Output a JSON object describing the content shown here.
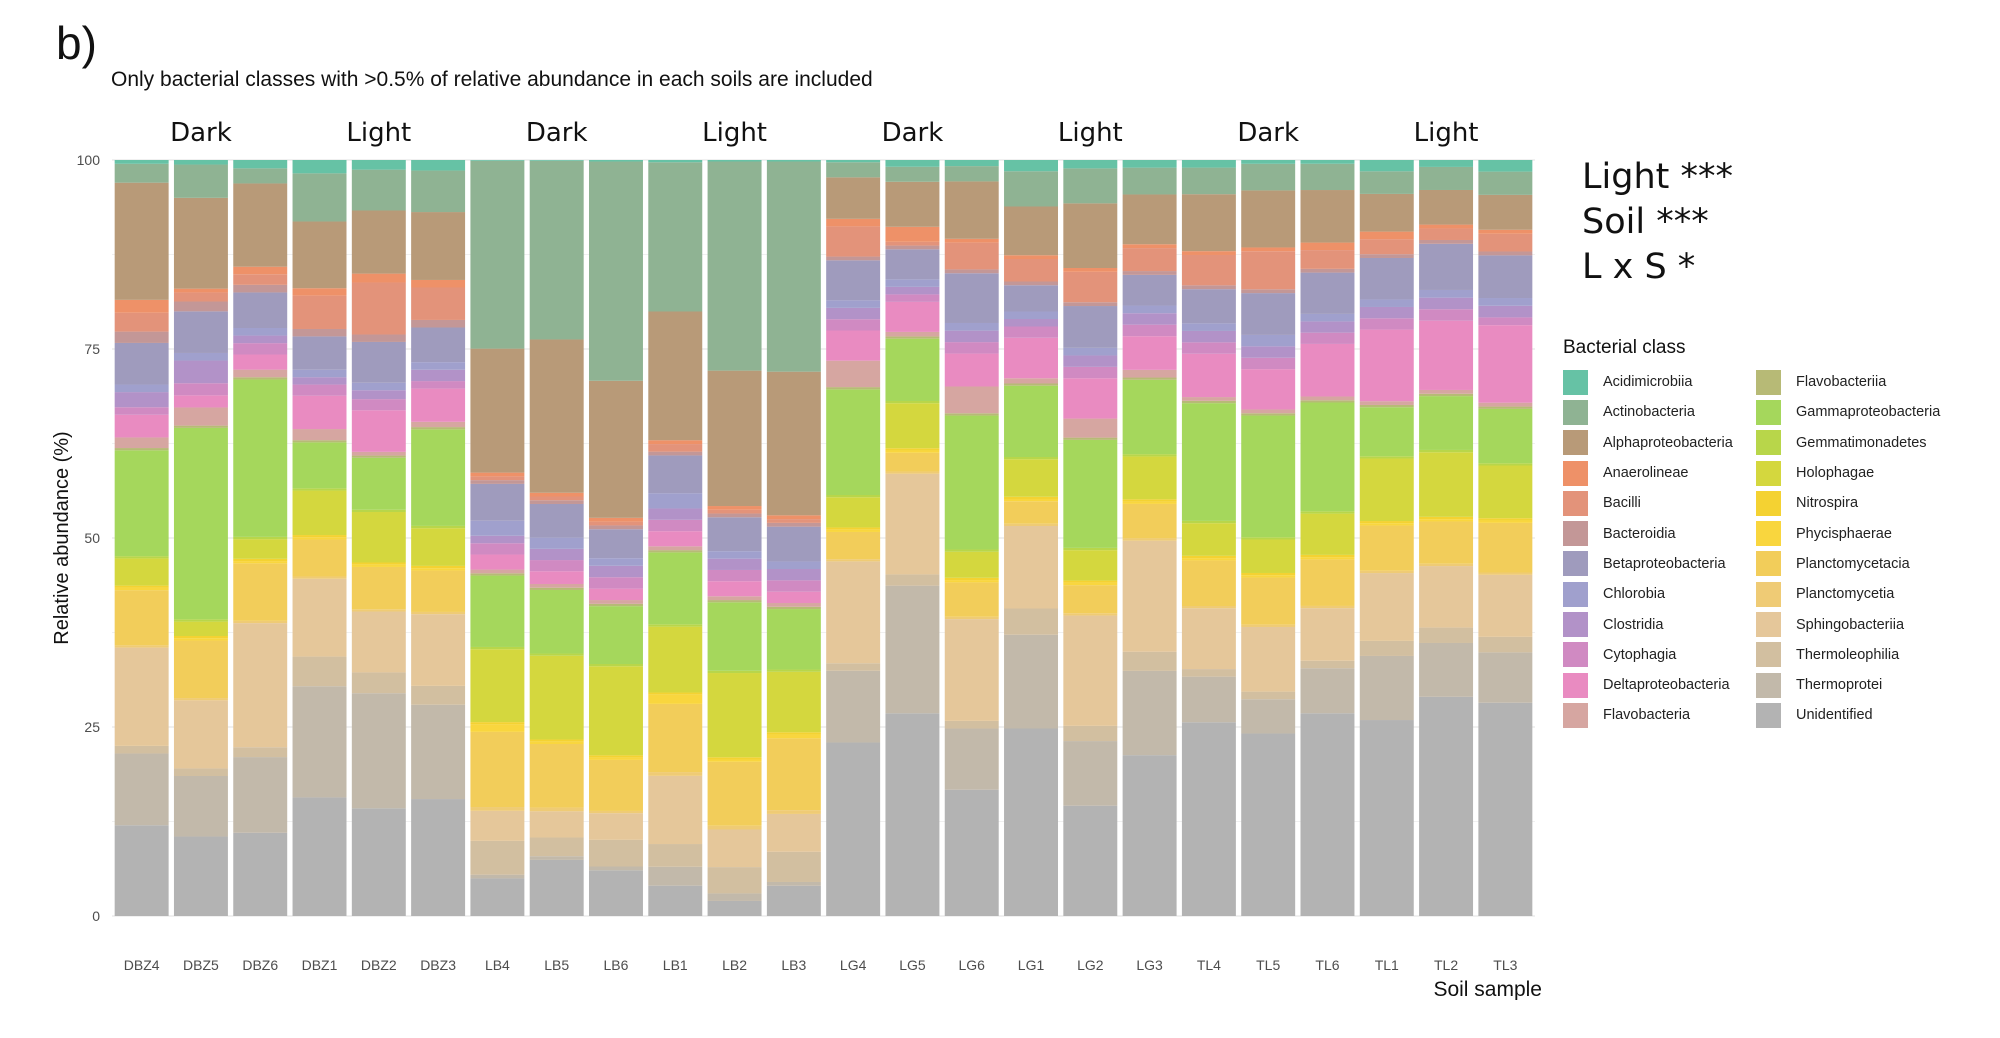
{
  "panel_label": "b)",
  "subtitle": "Only bacterial classes with >0.5% of relative abundance in each soils are included",
  "stats": [
    "Light ***",
    "Soil ***",
    "L x S *"
  ],
  "chart_data": {
    "type": "bar",
    "stacked": true,
    "xlabel": "Soil sample",
    "ylabel": "Relative abundance (%)",
    "ylim": [
      0,
      100
    ],
    "yticks": [
      0,
      25,
      50,
      75,
      100
    ],
    "grid": true,
    "legend_title": "Bacterial class",
    "legend_position": "right",
    "group_labels": [
      "Dark",
      "Light",
      "Dark",
      "Light",
      "Dark",
      "Light",
      "Dark",
      "Light"
    ],
    "categories": [
      "DBZ4",
      "DBZ5",
      "DBZ6",
      "DBZ1",
      "DBZ2",
      "DBZ3",
      "LB4",
      "LB5",
      "LB6",
      "LB1",
      "LB2",
      "LB3",
      "LG4",
      "LG5",
      "LG6",
      "LG1",
      "LG2",
      "LG3",
      "TL4",
      "TL5",
      "TL6",
      "TL1",
      "TL2",
      "TL3"
    ],
    "classes": [
      "Acidimicrobiia",
      "Actinobacteria",
      "Alphaproteobacteria",
      "Anaerolineae",
      "Bacilli",
      "Bacteroidia",
      "Betaproteobacteria",
      "Chlorobia",
      "Clostridia",
      "Cytophagia",
      "Deltaproteobacteria",
      "Flavobacteria",
      "Flavobacteriia",
      "Gammaproteobacteria",
      "Gemmatimonadetes",
      "Holophagae",
      "Nitrospira",
      "Phycisphaerae",
      "Planctomycetacia",
      "Planctomycetia",
      "Sphingobacteriia",
      "Thermoleophilia",
      "Thermoprotei",
      "Unidentified"
    ],
    "colors": [
      "#66c2a5",
      "#8fb393",
      "#b89a78",
      "#ee9168",
      "#e3937a",
      "#c39797",
      "#9f9bbd",
      "#a0a0cd",
      "#b292c8",
      "#d08ac2",
      "#e98bc1",
      "#d6a6a1",
      "#b7ba76",
      "#a5d75c",
      "#b8d64a",
      "#d4d73e",
      "#f4d232",
      "#f9d63e",
      "#f2cd5a",
      "#efcb75",
      "#e5c79a",
      "#d2bfa0",
      "#c2b9aa",
      "#b3b3b3"
    ],
    "series_order_note": "stack from bottom: Unidentified first",
    "values": {
      "DBZ4": {
        "Unidentified": 12,
        "Thermoprotei": 9.5,
        "Thermoleophilia": 1,
        "Sphingobacteriia": 13,
        "Planctomycetia": 0.3,
        "Planctomycetacia": 7.3,
        "Phycisphaerae": 0.3,
        "Nitrospira": 0.3,
        "Holophagae": 3.6,
        "Gemmatimonadetes": 0.3,
        "Gammaproteobacteria": 14,
        "Flavobacteriia": 0.3,
        "Flavobacteria": 1.4,
        "Deltaproteobacteria": 3,
        "Cytophagia": 1,
        "Clostridia": 2,
        "Chlorobia": 1,
        "Betaproteobacteria": 5.5,
        "Bacteroidia": 1.5,
        "Bacilli": 2.5,
        "Anaerolineae": 1.7,
        "Alphaproteobacteria": 15.5,
        "Actinobacteria": 2.5,
        "Acidimicrobiia": 0.5
      },
      "DBZ5": {
        "Unidentified": 10.5,
        "Thermoprotei": 8,
        "Thermoleophilia": 1,
        "Sphingobacteriia": 9,
        "Planctomycetia": 0.3,
        "Planctomycetacia": 7.6,
        "Phycisphaerae": 0.3,
        "Nitrospira": 0.3,
        "Holophagae": 1.9,
        "Gemmatimonadetes": 0.3,
        "Gammaproteobacteria": 25.3,
        "Flavobacteriia": 0.3,
        "Flavobacteria": 2.4,
        "Deltaproteobacteria": 1.6,
        "Cytophagia": 1.6,
        "Clostridia": 3,
        "Chlorobia": 1,
        "Betaproteobacteria": 5.5,
        "Bacteroidia": 1.3,
        "Bacilli": 1.2,
        "Anaerolineae": 0.5,
        "Alphaproteobacteria": 12,
        "Actinobacteria": 4.4,
        "Acidimicrobiia": 0.6
      },
      "DBZ6": {
        "Unidentified": 11,
        "Thermoprotei": 10,
        "Thermoleophilia": 1.3,
        "Sphingobacteriia": 16.4,
        "Planctomycetia": 0.3,
        "Planctomycetacia": 7.6,
        "Phycisphaerae": 0.3,
        "Nitrospira": 0.3,
        "Holophagae": 2.6,
        "Gemmatimonadetes": 0.3,
        "Gammaproteobacteria": 20.8,
        "Flavobacteriia": 0.3,
        "Flavobacteria": 1,
        "Deltaproteobacteria": 2,
        "Cytophagia": 1.5,
        "Clostridia": 1,
        "Chlorobia": 1,
        "Betaproteobacteria": 4.7,
        "Bacteroidia": 1,
        "Bacilli": 1.4,
        "Anaerolineae": 1,
        "Alphaproteobacteria": 11,
        "Actinobacteria": 2,
        "Acidimicrobiia": 1.1
      },
      "DBZ1": {
        "Unidentified": 16,
        "Thermoprotei": 15,
        "Thermoleophilia": 4,
        "Sphingobacteriia": 10.5,
        "Planctomycetia": 0.3,
        "Planctomycetacia": 5,
        "Phycisphaerae": 0.3,
        "Nitrospira": 0.3,
        "Holophagae": 6,
        "Gemmatimonadetes": 0.3,
        "Gammaproteobacteria": 6.2,
        "Flavobacteriia": 0.3,
        "Flavobacteria": 1.5,
        "Deltaproteobacteria": 4.5,
        "Cytophagia": 1.5,
        "Clostridia": 1,
        "Chlorobia": 1,
        "Betaproteobacteria": 4.5,
        "Bacteroidia": 1,
        "Bacilli": 4.5,
        "Anaerolineae": 1,
        "Alphaproteobacteria": 9,
        "Actinobacteria": 6.5,
        "Acidimicrobiia": 1.8
      },
      "DBZ2": {
        "Unidentified": 14.5,
        "Thermoprotei": 15.5,
        "Thermoleophilia": 2.8,
        "Sphingobacteriia": 8.2,
        "Planctomycetia": 0.3,
        "Planctomycetacia": 5.7,
        "Phycisphaerae": 0.3,
        "Nitrospira": 0.3,
        "Holophagae": 6.8,
        "Gemmatimonadetes": 0.3,
        "Gammaproteobacteria": 7,
        "Flavobacteriia": 0.3,
        "Flavobacteria": 0.5,
        "Deltaproteobacteria": 5.6,
        "Cytophagia": 1.5,
        "Clostridia": 1.2,
        "Chlorobia": 1,
        "Betaproteobacteria": 5.5,
        "Bacteroidia": 1,
        "Bacilli": 7,
        "Anaerolineae": 1.2,
        "Alphaproteobacteria": 8.5,
        "Actinobacteria": 5.5,
        "Acidimicrobiia": 1.3
      },
      "DBZ3": {
        "Unidentified": 15.5,
        "Thermoprotei": 12.5,
        "Thermoleophilia": 2.5,
        "Sphingobacteriia": 9.5,
        "Planctomycetia": 0.3,
        "Planctomycetacia": 5.5,
        "Phycisphaerae": 0.3,
        "Nitrospira": 0.3,
        "Holophagae": 5,
        "Gemmatimonadetes": 0.3,
        "Gammaproteobacteria": 12.8,
        "Flavobacteriia": 0.3,
        "Flavobacteria": 0.7,
        "Deltaproteobacteria": 4.4,
        "Cytophagia": 1,
        "Clostridia": 1.5,
        "Chlorobia": 1,
        "Betaproteobacteria": 4.6,
        "Bacteroidia": 1,
        "Bacilli": 4.3,
        "Anaerolineae": 1,
        "Alphaproteobacteria": 9,
        "Actinobacteria": 5.5,
        "Acidimicrobiia": 1.4
      },
      "LB4": {
        "Unidentified": 5,
        "Thermoprotei": 0.5,
        "Thermoleophilia": 4.5,
        "Sphingobacteriia": 4,
        "Planctomycetia": 0.5,
        "Planctomycetacia": 10,
        "Phycisphaerae": 1,
        "Nitrospira": 0.3,
        "Holophagae": 9.7,
        "Gemmatimonadetes": 0.3,
        "Gammaproteobacteria": 9.5,
        "Flavobacteriia": 0.3,
        "Flavobacteria": 0.5,
        "Deltaproteobacteria": 2,
        "Cytophagia": 1.5,
        "Clostridia": 1,
        "Chlorobia": 2,
        "Betaproteobacteria": 4.9,
        "Bacteroidia": 0.5,
        "Bacilli": 0.5,
        "Anaerolineae": 0.5,
        "Alphaproteobacteria": 16.5,
        "Actinobacteria": 25,
        "Acidimicrobiia": 0.1
      },
      "LB5": {
        "Unidentified": 7.5,
        "Thermoprotei": 0.5,
        "Thermoleophilia": 2.5,
        "Sphingobacteriia": 3.5,
        "Planctomycetia": 0.5,
        "Planctomycetacia": 8.5,
        "Phycisphaerae": 0.3,
        "Nitrospira": 0.3,
        "Holophagae": 11.2,
        "Gemmatimonadetes": 0.3,
        "Gammaproteobacteria": 8.5,
        "Flavobacteriia": 0.3,
        "Flavobacteria": 0.5,
        "Deltaproteobacteria": 1.7,
        "Cytophagia": 1.5,
        "Clostridia": 1.5,
        "Chlorobia": 1.5,
        "Betaproteobacteria": 4.5,
        "Bacteroidia": 0.5,
        "Bacilli": 0.5,
        "Anaerolineae": 0.5,
        "Alphaproteobacteria": 20.5,
        "Actinobacteria": 23.9,
        "Acidimicrobiia": 0.1
      },
      "LB6": {
        "Unidentified": 6,
        "Thermoprotei": 0.5,
        "Thermoleophilia": 3.5,
        "Sphingobacteriia": 3.5,
        "Planctomycetia": 0.3,
        "Planctomycetacia": 6.7,
        "Phycisphaerae": 0.3,
        "Nitrospira": 0.3,
        "Holophagae": 11.7,
        "Gemmatimonadetes": 0.3,
        "Gammaproteobacteria": 7.6,
        "Flavobacteriia": 0.3,
        "Flavobacteria": 0.5,
        "Deltaproteobacteria": 1.5,
        "Cytophagia": 1.5,
        "Clostridia": 1.5,
        "Chlorobia": 1,
        "Betaproteobacteria": 3.8,
        "Bacteroidia": 0.5,
        "Bacilli": 0.5,
        "Anaerolineae": 0.5,
        "Alphaproteobacteria": 18,
        "Actinobacteria": 28.8,
        "Acidimicrobiia": 0.2
      },
      "LB1": {
        "Unidentified": 4,
        "Thermoprotei": 2.5,
        "Thermoleophilia": 3,
        "Sphingobacteriia": 9,
        "Planctomycetia": 0.5,
        "Planctomycetacia": 9,
        "Phycisphaerae": 1.2,
        "Nitrospira": 0.3,
        "Holophagae": 8.7,
        "Gemmatimonadetes": 0.3,
        "Gammaproteobacteria": 9.5,
        "Flavobacteriia": 0.3,
        "Flavobacteria": 0.5,
        "Deltaproteobacteria": 2,
        "Cytophagia": 1.5,
        "Clostridia": 1.5,
        "Chlorobia": 2,
        "Betaproteobacteria": 5,
        "Bacteroidia": 0.5,
        "Bacilli": 1,
        "Anaerolineae": 0.5,
        "Alphaproteobacteria": 17,
        "Actinobacteria": 19.7,
        "Acidimicrobiia": 0.3
      },
      "LB2": {
        "Unidentified": 2,
        "Thermoprotei": 1,
        "Thermoleophilia": 3.5,
        "Sphingobacteriia": 5,
        "Planctomycetia": 0.5,
        "Planctomycetacia": 8.5,
        "Phycisphaerae": 0.3,
        "Nitrospira": 0.3,
        "Holophagae": 11.2,
        "Gemmatimonadetes": 0.3,
        "Gammaproteobacteria": 9.1,
        "Flavobacteriia": 0.3,
        "Flavobacteria": 0.5,
        "Deltaproteobacteria": 2,
        "Cytophagia": 1.5,
        "Clostridia": 1.5,
        "Chlorobia": 1,
        "Betaproteobacteria": 4.5,
        "Bacteroidia": 0.5,
        "Bacilli": 0.5,
        "Anaerolineae": 0.5,
        "Alphaproteobacteria": 18,
        "Actinobacteria": 27.8,
        "Acidimicrobiia": 0.2
      },
      "LB3": {
        "Unidentified": 4,
        "Thermoprotei": 0.5,
        "Thermoleophilia": 4,
        "Sphingobacteriia": 5,
        "Planctomycetia": 0.5,
        "Planctomycetacia": 9.5,
        "Phycisphaerae": 0.5,
        "Nitrospira": 0.3,
        "Holophagae": 8,
        "Gemmatimonadetes": 0.3,
        "Gammaproteobacteria": 8,
        "Flavobacteriia": 0.3,
        "Flavobacteria": 0.5,
        "Deltaproteobacteria": 1.5,
        "Cytophagia": 1.5,
        "Clostridia": 1.5,
        "Chlorobia": 1,
        "Betaproteobacteria": 4.6,
        "Bacteroidia": 0.5,
        "Bacilli": 0.5,
        "Anaerolineae": 0.5,
        "Alphaproteobacteria": 19,
        "Actinobacteria": 27.8,
        "Acidimicrobiia": 0.2
      },
      "LG4": {
        "Unidentified": 23,
        "Thermoprotei": 9.5,
        "Thermoleophilia": 1,
        "Sphingobacteriia": 13.5,
        "Planctomycetia": 0.3,
        "Planctomycetacia": 3.6,
        "Phycisphaerae": 0.3,
        "Nitrospira": 0.3,
        "Holophagae": 4,
        "Gemmatimonadetes": 0.3,
        "Gammaproteobacteria": 14,
        "Flavobacteriia": 0.3,
        "Flavobacteria": 3.5,
        "Deltaproteobacteria": 4,
        "Cytophagia": 1.5,
        "Clostridia": 1.5,
        "Chlorobia": 1,
        "Betaproteobacteria": 5.3,
        "Bacteroidia": 0.5,
        "Bacilli": 4,
        "Anaerolineae": 1,
        "Alphaproteobacteria": 5.5,
        "Actinobacteria": 2,
        "Acidimicrobiia": 0.3
      },
      "LG5": {
        "Unidentified": 27,
        "Thermoprotei": 17,
        "Thermoleophilia": 1.5,
        "Sphingobacteriia": 13.4,
        "Planctomycetia": 0.3,
        "Planctomycetacia": 2.5,
        "Phycisphaerae": 0.3,
        "Nitrospira": 0.3,
        "Holophagae": 6,
        "Gemmatimonadetes": 0.3,
        "Gammaproteobacteria": 8.3,
        "Flavobacteriia": 0.3,
        "Flavobacteria": 0.6,
        "Deltaproteobacteria": 4,
        "Cytophagia": 1,
        "Clostridia": 1,
        "Chlorobia": 1,
        "Betaproteobacteria": 4,
        "Bacteroidia": 0.5,
        "Bacilli": 0.5,
        "Anaerolineae": 2,
        "Alphaproteobacteria": 6,
        "Actinobacteria": 2,
        "Acidimicrobiia": 0.9
      },
      "LG6": {
        "Unidentified": 16.5,
        "Thermoprotei": 8,
        "Thermoleophilia": 1,
        "Sphingobacteriia": 13.3,
        "Planctomycetia": 0.3,
        "Planctomycetacia": 4.5,
        "Phycisphaerae": 0.3,
        "Nitrospira": 0.3,
        "Holophagae": 3.4,
        "Gemmatimonadetes": 0.3,
        "Gammaproteobacteria": 17.5,
        "Flavobacteriia": 0.3,
        "Flavobacteria": 3.5,
        "Deltaproteobacteria": 4.3,
        "Cytophagia": 1.5,
        "Clostridia": 1.5,
        "Chlorobia": 1,
        "Betaproteobacteria": 6.5,
        "Bacteroidia": 0.5,
        "Bacilli": 3.5,
        "Anaerolineae": 0.5,
        "Alphaproteobacteria": 7.5,
        "Actinobacteria": 2,
        "Acidimicrobiia": 0.8
      },
      "LG1": {
        "Unidentified": 25,
        "Thermoprotei": 12.5,
        "Thermoleophilia": 3.5,
        "Sphingobacteriia": 11,
        "Planctomycetia": 0.3,
        "Planctomycetacia": 3,
        "Phycisphaerae": 0.3,
        "Nitrospira": 0.3,
        "Holophagae": 5,
        "Gemmatimonadetes": 0.3,
        "Gammaproteobacteria": 9.5,
        "Flavobacteriia": 0.3,
        "Flavobacteria": 0.7,
        "Deltaproteobacteria": 5.4,
        "Cytophagia": 1.5,
        "Clostridia": 1,
        "Chlorobia": 1,
        "Betaproteobacteria": 3.5,
        "Bacteroidia": 0.5,
        "Bacilli": 3,
        "Anaerolineae": 0.5,
        "Alphaproteobacteria": 6.5,
        "Actinobacteria": 4.7,
        "Acidimicrobiia": 1.5
      },
      "LG2": {
        "Unidentified": 14.5,
        "Thermoprotei": 8.5,
        "Thermoleophilia": 2,
        "Sphingobacteriia": 14.5,
        "Planctomycetia": 0.3,
        "Planctomycetacia": 3.7,
        "Phycisphaerae": 0.3,
        "Nitrospira": 0.3,
        "Holophagae": 4,
        "Gemmatimonadetes": 0.3,
        "Gammaproteobacteria": 14.2,
        "Flavobacteriia": 0.3,
        "Flavobacteria": 2.5,
        "Deltaproteobacteria": 5.3,
        "Cytophagia": 1.5,
        "Clostridia": 1.5,
        "Chlorobia": 1,
        "Betaproteobacteria": 5.5,
        "Bacteroidia": 0.5,
        "Bacilli": 4,
        "Anaerolineae": 0.5,
        "Alphaproteobacteria": 8.5,
        "Actinobacteria": 4.6,
        "Acidimicrobiia": 1.1
      },
      "LG3": {
        "Unidentified": 21,
        "Thermoprotei": 11,
        "Thermoleophilia": 2.5,
        "Sphingobacteriia": 14.5,
        "Planctomycetia": 0.3,
        "Planctomycetacia": 4.5,
        "Phycisphaerae": 0.3,
        "Nitrospira": 0.3,
        "Holophagae": 5.6,
        "Gemmatimonadetes": 0.3,
        "Gammaproteobacteria": 9.7,
        "Flavobacteriia": 0.3,
        "Flavobacteria": 1,
        "Deltaproteobacteria": 4.4,
        "Cytophagia": 1.5,
        "Clostridia": 1.5,
        "Chlorobia": 1,
        "Betaproteobacteria": 4,
        "Bacteroidia": 0.5,
        "Bacilli": 3,
        "Anaerolineae": 0.5,
        "Alphaproteobacteria": 6.5,
        "Actinobacteria": 3.5,
        "Acidimicrobiia": 1
      },
      "TL4": {
        "Unidentified": 25.5,
        "Thermoprotei": 6,
        "Thermoleophilia": 1,
        "Sphingobacteriia": 8,
        "Planctomycetia": 0.3,
        "Planctomycetacia": 6,
        "Phycisphaerae": 0.3,
        "Nitrospira": 0.3,
        "Holophagae": 4.3,
        "Gemmatimonadetes": 0.3,
        "Gammaproteobacteria": 15.5,
        "Flavobacteriia": 0.3,
        "Flavobacteria": 0.5,
        "Deltaproteobacteria": 5.7,
        "Cytophagia": 1.5,
        "Clostridia": 1.5,
        "Chlorobia": 1,
        "Betaproteobacteria": 4.5,
        "Bacteroidia": 0.5,
        "Bacilli": 4,
        "Anaerolineae": 0.5,
        "Alphaproteobacteria": 7.5,
        "Actinobacteria": 3.5,
        "Acidimicrobiia": 1
      },
      "TL5": {
        "Unidentified": 24,
        "Thermoprotei": 4.5,
        "Thermoleophilia": 1,
        "Sphingobacteriia": 8.5,
        "Planctomycetia": 0.3,
        "Planctomycetacia": 6.2,
        "Phycisphaerae": 0.3,
        "Nitrospira": 0.3,
        "Holophagae": 4.4,
        "Gemmatimonadetes": 0.3,
        "Gammaproteobacteria": 16,
        "Flavobacteriia": 0.3,
        "Flavobacteria": 0.5,
        "Deltaproteobacteria": 5.3,
        "Cytophagia": 1.5,
        "Clostridia": 1.5,
        "Chlorobia": 1.5,
        "Betaproteobacteria": 5.5,
        "Bacteroidia": 0.5,
        "Bacilli": 5,
        "Anaerolineae": 0.5,
        "Alphaproteobacteria": 7.5,
        "Actinobacteria": 3.5,
        "Acidimicrobiia": 0.5
      },
      "TL6": {
        "Unidentified": 27,
        "Thermoprotei": 6,
        "Thermoleophilia": 1,
        "Sphingobacteriia": 7,
        "Planctomycetia": 0.3,
        "Planctomycetacia": 6.2,
        "Phycisphaerae": 0.3,
        "Nitrospira": 0.3,
        "Holophagae": 5.5,
        "Gemmatimonadetes": 0.3,
        "Gammaproteobacteria": 14.5,
        "Flavobacteriia": 0.3,
        "Flavobacteria": 0.5,
        "Deltaproteobacteria": 7,
        "Cytophagia": 1.5,
        "Clostridia": 1.5,
        "Chlorobia": 1,
        "Betaproteobacteria": 5.5,
        "Bacteroidia": 0.5,
        "Bacilli": 2.5,
        "Anaerolineae": 1,
        "Alphaproteobacteria": 7,
        "Actinobacteria": 3.5,
        "Acidimicrobiia": 0.5
      },
      "TL1": {
        "Unidentified": 26,
        "Thermoprotei": 8.5,
        "Thermoleophilia": 2,
        "Sphingobacteriia": 9,
        "Planctomycetia": 0.3,
        "Planctomycetacia": 6,
        "Phycisphaerae": 0.3,
        "Nitrospira": 0.3,
        "Holophagae": 8.3,
        "Gemmatimonadetes": 0.3,
        "Gammaproteobacteria": 6.5,
        "Flavobacteriia": 0.3,
        "Flavobacteria": 0.5,
        "Deltaproteobacteria": 9.5,
        "Cytophagia": 1.5,
        "Clostridia": 1.5,
        "Chlorobia": 1,
        "Betaproteobacteria": 5.5,
        "Bacteroidia": 0.5,
        "Bacilli": 2,
        "Anaerolineae": 1,
        "Alphaproteobacteria": 5,
        "Actinobacteria": 3,
        "Acidimicrobiia": 1.5
      },
      "TL2": {
        "Unidentified": 28.5,
        "Thermoprotei": 7,
        "Thermoleophilia": 2,
        "Sphingobacteriia": 8,
        "Planctomycetia": 0.3,
        "Planctomycetacia": 5.5,
        "Phycisphaerae": 0.3,
        "Nitrospira": 0.3,
        "Holophagae": 8.4,
        "Gemmatimonadetes": 0.3,
        "Gammaproteobacteria": 7,
        "Flavobacteriia": 0.3,
        "Flavobacteria": 0.5,
        "Deltaproteobacteria": 9,
        "Cytophagia": 1.5,
        "Clostridia": 1.5,
        "Chlorobia": 1,
        "Betaproteobacteria": 6,
        "Bacteroidia": 0.5,
        "Bacilli": 1.5,
        "Anaerolineae": 0.5,
        "Alphaproteobacteria": 4.5,
        "Actinobacteria": 3,
        "Acidimicrobiia": 0.9
      },
      "TL3": {
        "Unidentified": 27.5,
        "Thermoprotei": 6.5,
        "Thermoleophilia": 2,
        "Sphingobacteriia": 8,
        "Planctomycetia": 0.3,
        "Planctomycetacia": 6.4,
        "Phycisphaerae": 0.3,
        "Nitrospira": 0.3,
        "Holophagae": 6.8,
        "Gemmatimonadetes": 0.3,
        "Gammaproteobacteria": 7,
        "Flavobacteriia": 0.3,
        "Flavobacteria": 0.5,
        "Deltaproteobacteria": 10,
        "Cytophagia": 1,
        "Clostridia": 1.5,
        "Chlorobia": 1,
        "Betaproteobacteria": 5.5,
        "Bacteroidia": 0.5,
        "Bacilli": 2.3,
        "Anaerolineae": 0.5,
        "Alphaproteobacteria": 4.5,
        "Actinobacteria": 3,
        "Acidimicrobiia": 1.5
      }
    }
  }
}
